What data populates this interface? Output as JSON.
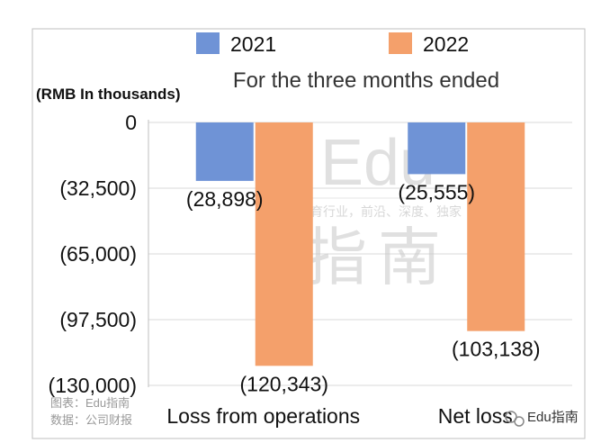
{
  "chart_data": {
    "type": "bar",
    "title": "For the three months ended",
    "ylabel": "(RMB In thousands)",
    "categories": [
      "Loss from operations",
      "Net loss"
    ],
    "series": [
      {
        "name": "2021",
        "values": [
          -28898,
          -25555
        ],
        "labels": [
          "(28,898)",
          "(25,555)"
        ],
        "color": "#6f93d6"
      },
      {
        "name": "2022",
        "values": [
          -120343,
          -103138
        ],
        "labels": [
          "(120,343)",
          "(103,138)"
        ],
        "color": "#f4a06b"
      }
    ],
    "ylim": [
      -130000,
      0
    ],
    "yticks": [
      0,
      -32500,
      -65000,
      -97500,
      -130000
    ],
    "ytick_labels": [
      "0",
      "(32,500)",
      "(65,000)",
      "(97,500)",
      "(130,000)"
    ],
    "legend_position": "top",
    "grid": true
  },
  "watermark": {
    "big_top": "Edu",
    "slogan": "教育行业，前沿、深度、独家",
    "big_bottom": "指南"
  },
  "footer": {
    "source_line1": "图表：Edu指南",
    "source_line2": "数据：公司财报",
    "brand": "Edu指南"
  }
}
